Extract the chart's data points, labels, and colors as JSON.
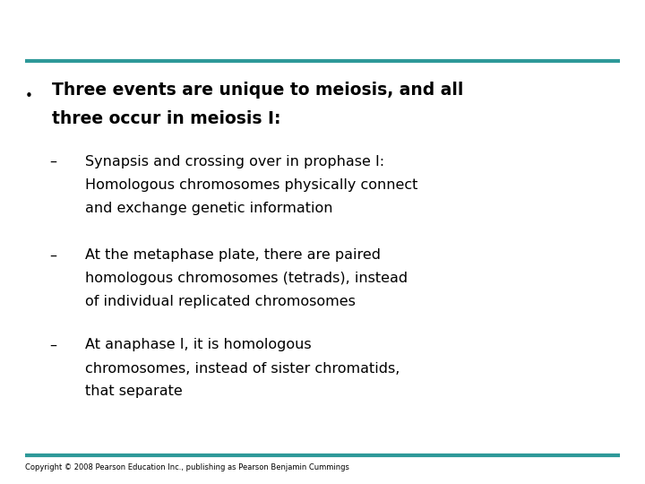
{
  "background_color": "#ffffff",
  "top_line_color": "#2e9999",
  "bottom_line_color": "#2e9999",
  "title_text_line1": "Three events are unique to meiosis, and all",
  "title_text_line2": "three occur in meiosis I:",
  "title_fontsize": 13.5,
  "sub_fontsize": 11.5,
  "copyright_text": "Copyright © 2008 Pearson Education Inc., publishing as Pearson Benjamin Cummings",
  "copyright_fontsize": 6.0,
  "sub_items": [
    {
      "lines": [
        "Synapsis and crossing over in prophase I:",
        "Homologous chromosomes physically connect",
        "and exchange genetic information"
      ]
    },
    {
      "lines": [
        "At the metaphase plate, there are paired",
        "homologous chromosomes (tetrads), instead",
        "of individual replicated chromosomes"
      ]
    },
    {
      "lines": [
        "At anaphase I, it is homologous",
        "chromosomes, instead of sister chromatids,",
        "that separate"
      ]
    }
  ]
}
